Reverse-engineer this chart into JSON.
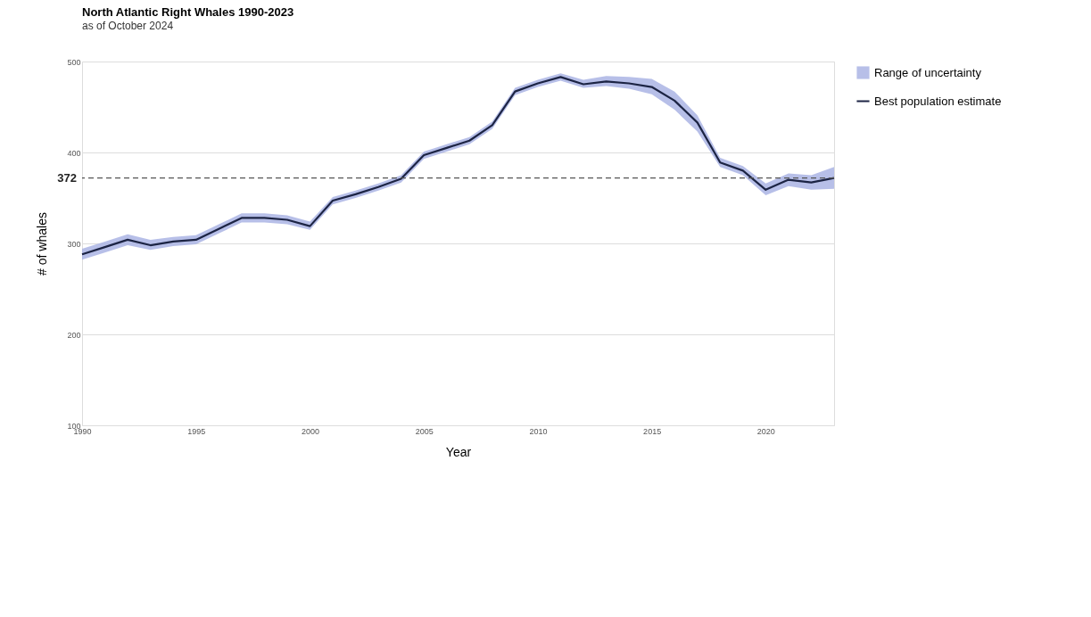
{
  "chart_data": {
    "type": "line",
    "title": "North Atlantic Right Whales 1990-2023",
    "subtitle": "as of October 2024",
    "xlabel": "Year",
    "ylabel": "# of whales",
    "x": [
      1990,
      1991,
      1992,
      1993,
      1994,
      1995,
      1996,
      1997,
      1998,
      1999,
      2000,
      2001,
      2002,
      2003,
      2004,
      2005,
      2006,
      2007,
      2008,
      2009,
      2010,
      2011,
      2012,
      2013,
      2014,
      2015,
      2016,
      2017,
      2018,
      2019,
      2020,
      2021,
      2022,
      2023
    ],
    "series": [
      {
        "name": "Best population estimate",
        "color": "#1c2444",
        "values": [
          288,
          296,
          304,
          298,
          302,
          304,
          316,
          328,
          328,
          326,
          319,
          347,
          354,
          362,
          371,
          397,
          405,
          413,
          430,
          467,
          476,
          483,
          475,
          478,
          476,
          472,
          457,
          433,
          389,
          380,
          359,
          370,
          367,
          372
        ]
      },
      {
        "name": "Range of uncertainty",
        "type": "area",
        "color": "#aab4e4",
        "values": [
          null,
          null,
          null,
          null,
          null,
          null,
          null,
          null,
          null,
          null,
          null,
          null,
          null,
          null,
          null,
          null,
          null,
          null,
          null,
          null,
          null,
          null,
          null,
          null,
          null,
          null,
          null,
          null,
          null,
          null,
          null,
          null,
          null,
          null
        ],
        "lower": [
          282,
          290,
          298,
          293,
          297,
          299,
          311,
          323,
          323,
          321,
          315,
          343,
          350,
          358,
          367,
          393,
          401,
          409,
          426,
          463,
          472,
          479,
          471,
          473,
          470,
          464,
          447,
          423,
          384,
          375,
          353,
          363,
          359,
          360
        ],
        "upper": [
          294,
          302,
          310,
          304,
          307,
          309,
          321,
          333,
          333,
          331,
          324,
          351,
          358,
          366,
          375,
          401,
          409,
          417,
          434,
          471,
          480,
          487,
          480,
          484,
          483,
          481,
          467,
          441,
          394,
          385,
          366,
          377,
          375,
          384
        ]
      }
    ],
    "ref_lines": [
      {
        "axis": "y",
        "value": 372,
        "label": "372",
        "line_style": "dashed",
        "color": "#555555"
      }
    ],
    "xlim": [
      1990,
      2023
    ],
    "xticks": [
      1990,
      1995,
      2000,
      2005,
      2010,
      2015,
      2020
    ],
    "ylim": [
      100,
      500
    ],
    "yticks": [
      100,
      200,
      300,
      400,
      500
    ],
    "grid": "y",
    "legend": "right",
    "line_style": "solid",
    "marker": "none"
  }
}
